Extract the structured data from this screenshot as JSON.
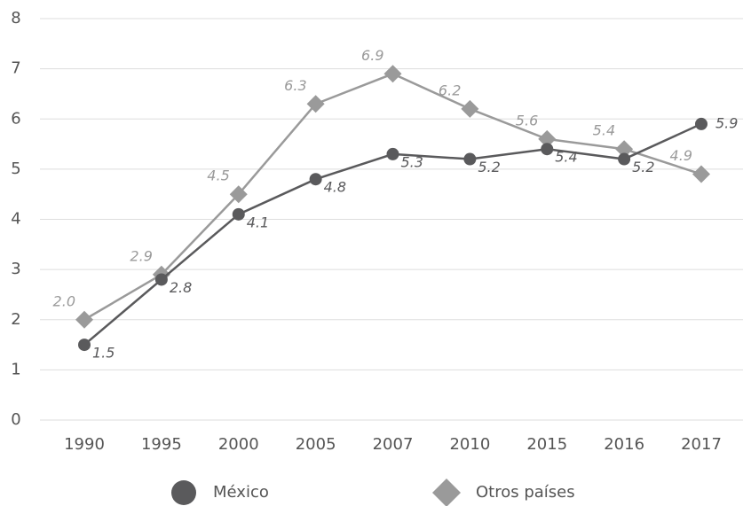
{
  "chart_data": {
    "type": "line",
    "categories": [
      "1990",
      "1995",
      "2000",
      "2005",
      "2007",
      "2010",
      "2015",
      "2016",
      "2017"
    ],
    "series": [
      {
        "name": "México",
        "color": "#5a5a5c",
        "values": [
          1.5,
          2.8,
          4.1,
          4.8,
          5.3,
          5.2,
          5.4,
          5.2,
          5.9
        ],
        "value_labels": [
          "1.5",
          "2.8",
          "4.1",
          "4.8",
          "5.3",
          "5.2",
          "5.4",
          "5.2",
          "5.9"
        ]
      },
      {
        "name": "Otros países",
        "color": "#9a9a9a",
        "values": [
          2.0,
          2.9,
          4.5,
          6.3,
          6.9,
          6.2,
          5.6,
          5.4,
          4.9
        ],
        "value_labels": [
          "2.0",
          "2.9",
          "4.5",
          "6.3",
          "6.9",
          "6.2",
          "5.6",
          "5.4",
          "4.9"
        ]
      }
    ],
    "ylim": [
      0,
      8
    ],
    "yticks": [
      0,
      1,
      2,
      3,
      4,
      5,
      6,
      7,
      8
    ],
    "grid": true
  }
}
